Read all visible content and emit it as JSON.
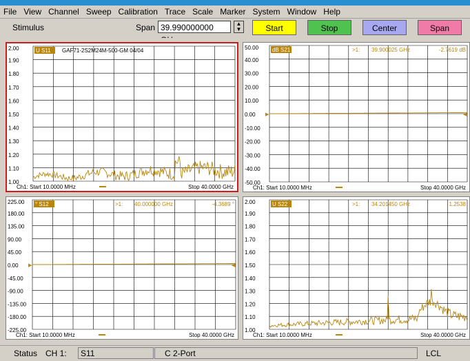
{
  "menu": [
    "File",
    "View",
    "Channel",
    "Sweep",
    "Calibration",
    "Trace",
    "Scale",
    "Marker",
    "System",
    "Window",
    "Help"
  ],
  "toolbar": {
    "stimulus_label": "Stimulus",
    "span_label": "Span",
    "span_value": "39.990000000 GHz",
    "buttons": [
      {
        "label": "Start",
        "color": "#ffff00"
      },
      {
        "label": "Stop",
        "color": "#4fc24f"
      },
      {
        "label": "Center",
        "color": "#a8a8f0"
      },
      {
        "label": "Span",
        "color": "#f07aa8"
      }
    ]
  },
  "trace_color": "#b8860b",
  "active_border_color": "#c81e1e",
  "panels": [
    {
      "id": "s11",
      "active": true,
      "trace_label": "U S11",
      "title": "GAF71-2S2M24M-500-GM 04/04",
      "marker": null,
      "yticks": [
        "2.00",
        "1.90",
        "1.80",
        "1.70",
        "1.60",
        "1.50",
        "1.40",
        "1.30",
        "1.20",
        "1.10",
        "1.00"
      ],
      "start": "Ch1: Start  10.0000 MHz",
      "stop": "Stop  40.0000 GHz",
      "kind": "vswr1"
    },
    {
      "id": "s21",
      "active": false,
      "trace_label": "dB S21",
      "title": "",
      "marker": {
        "label": ">1:",
        "freq": "39.900025 GHz",
        "value": "-2.7619 dB"
      },
      "yticks": [
        "50.00",
        "40.00",
        "30.00",
        "20.00",
        "10.00",
        "0.00",
        "-10.00",
        "-20.00",
        "-30.00",
        "-40.00",
        "-50.00"
      ],
      "start": "Ch1: Start  10.0000 MHz",
      "stop": "Stop  40.0000 GHz",
      "kind": "flat5"
    },
    {
      "id": "s12",
      "active": false,
      "trace_label": "° S12",
      "title": "",
      "marker": {
        "label": ">1:",
        "freq": "40.000000 GHz",
        "value": "-4.3689 °"
      },
      "yticks": [
        "225.00",
        "180.00",
        "135.00",
        "90.00",
        "45.00",
        "0.00",
        "-45.00",
        "-90.00",
        "-135.00",
        "-180.00",
        "-225.00"
      ],
      "start": "Ch1: Start  10.0000 MHz",
      "stop": "Stop  40.0000 GHz",
      "kind": "flat5"
    },
    {
      "id": "s22",
      "active": false,
      "trace_label": "U S22",
      "title": "",
      "marker": {
        "label": ">1:",
        "freq": "34.201450 GHz",
        "value": "1.2538"
      },
      "yticks": [
        "2.00",
        "1.90",
        "1.80",
        "1.70",
        "1.60",
        "1.50",
        "1.40",
        "1.30",
        "1.20",
        "1.10",
        "1.00"
      ],
      "start": "Ch1: Start  10.0000 MHz",
      "stop": "Stop  40.0000 GHz",
      "kind": "vswr2"
    }
  ],
  "status": {
    "label": "Status",
    "channel": "CH 1:",
    "param": "S11",
    "port": "C  2-Port",
    "lcl": "LCL"
  }
}
